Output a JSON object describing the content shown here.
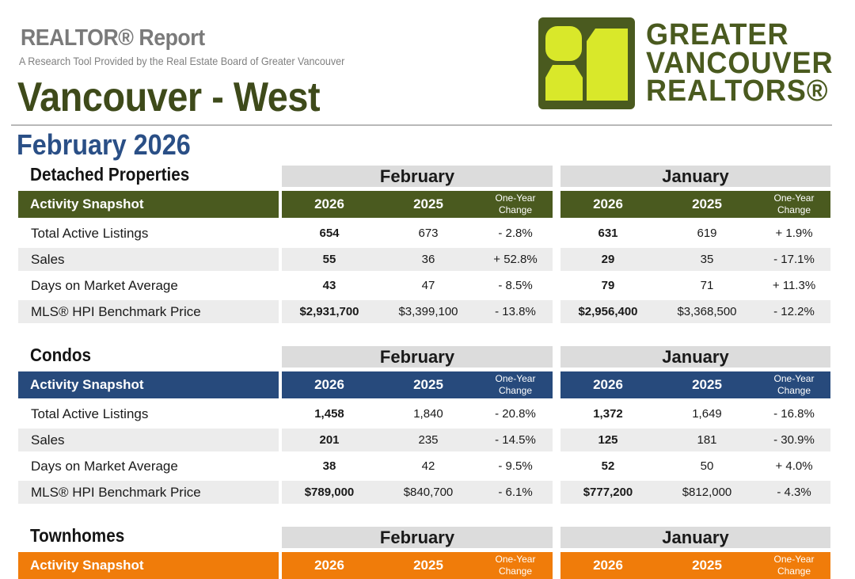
{
  "header": {
    "report_title": "REALTOR® Report",
    "subtitle": "A Research Tool Provided by the Real Estate Board of Greater Vancouver",
    "area": "Vancouver - West",
    "period": "February 2026"
  },
  "logo": {
    "line1": "GREATER",
    "line2": "VANCOUVER",
    "line3": "REALTORS®",
    "colors": {
      "dark": "#4a5a1f",
      "lime": "#d9e82a"
    }
  },
  "columns": {
    "group_a": "February",
    "group_b": "January",
    "year_current": "2026",
    "year_prior": "2025",
    "change_line1": "One-Year",
    "change_line2": "Change",
    "band_label": "Activity Snapshot"
  },
  "row_labels": [
    "Total Active Listings",
    "Sales",
    "Days on Market Average",
    "MLS® HPI Benchmark Price"
  ],
  "sections": [
    {
      "title": "Detached Properties",
      "color": "#4a5a1f",
      "rows": [
        {
          "feb_2026": "654",
          "feb_2025": "673",
          "feb_change": "- 2.8%",
          "jan_2026": "631",
          "jan_2025": "619",
          "jan_change": "+ 1.9%"
        },
        {
          "feb_2026": "55",
          "feb_2025": "36",
          "feb_change": "+ 52.8%",
          "jan_2026": "29",
          "jan_2025": "35",
          "jan_change": "- 17.1%"
        },
        {
          "feb_2026": "43",
          "feb_2025": "47",
          "feb_change": "- 8.5%",
          "jan_2026": "79",
          "jan_2025": "71",
          "jan_change": "+ 11.3%"
        },
        {
          "feb_2026": "$2,931,700",
          "feb_2025": "$3,399,100",
          "feb_change": "- 13.8%",
          "jan_2026": "$2,956,400",
          "jan_2025": "$3,368,500",
          "jan_change": "- 12.2%"
        }
      ]
    },
    {
      "title": "Condos",
      "color": "#274a7c",
      "rows": [
        {
          "feb_2026": "1,458",
          "feb_2025": "1,840",
          "feb_change": "- 20.8%",
          "jan_2026": "1,372",
          "jan_2025": "1,649",
          "jan_change": "- 16.8%"
        },
        {
          "feb_2026": "201",
          "feb_2025": "235",
          "feb_change": "- 14.5%",
          "jan_2026": "125",
          "jan_2025": "181",
          "jan_change": "- 30.9%"
        },
        {
          "feb_2026": "38",
          "feb_2025": "42",
          "feb_change": "- 9.5%",
          "jan_2026": "52",
          "jan_2025": "50",
          "jan_change": "+ 4.0%"
        },
        {
          "feb_2026": "$789,000",
          "feb_2025": "$840,700",
          "feb_change": "- 6.1%",
          "jan_2026": "$777,200",
          "jan_2025": "$812,000",
          "jan_change": "- 4.3%"
        }
      ]
    },
    {
      "title": "Townhomes",
      "color": "#f07c0a",
      "rows": []
    }
  ]
}
